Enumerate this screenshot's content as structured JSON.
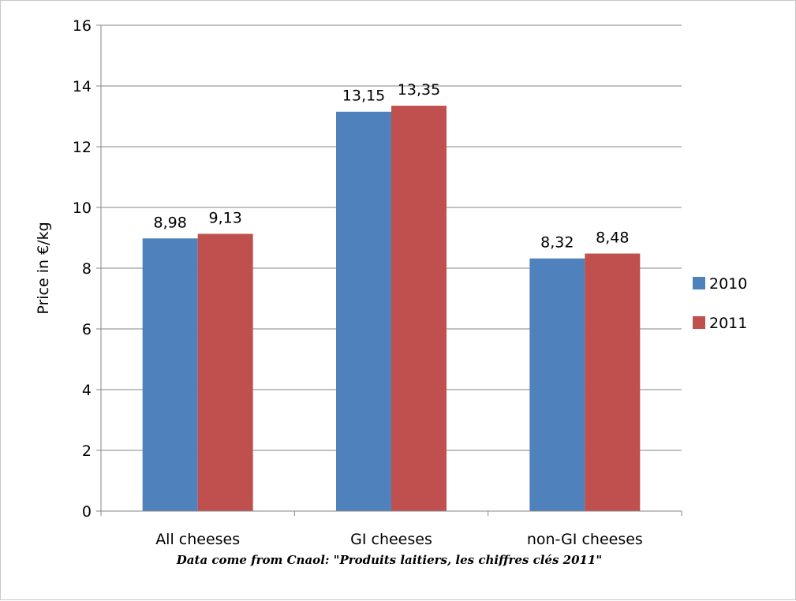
{
  "chart_data": {
    "type": "bar",
    "categories": [
      "All cheeses",
      "GI cheeses",
      "non-GI cheeses"
    ],
    "series": [
      {
        "name": "2010",
        "values": [
          8.98,
          13.15,
          8.32
        ],
        "labels": [
          "8,98",
          "13,15",
          "8,32"
        ],
        "color": "#4F81BD"
      },
      {
        "name": "2011",
        "values": [
          9.13,
          13.35,
          8.48
        ],
        "labels": [
          "9,13",
          "13,35",
          "8,48"
        ],
        "color": "#C0504D"
      }
    ],
    "ylabel": "Price in €/kg",
    "ylim": [
      0,
      16
    ],
    "yticks": [
      0,
      2,
      4,
      6,
      8,
      10,
      12,
      14,
      16
    ],
    "grid": true,
    "legend": "right"
  },
  "footnote": "Data come from Cnaol: \"Produits laitiers, les chiffres clés 2011\""
}
